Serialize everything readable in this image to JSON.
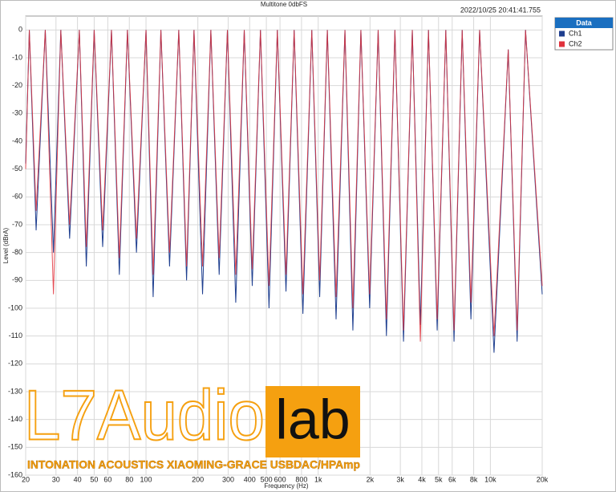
{
  "chart_data": {
    "type": "line",
    "title": "Multitone 0dbFS",
    "timestamp": "2022/10/25 20:41:41.755",
    "logo": "AP",
    "x_label": "Frequency (Hz)",
    "y_label": "Level (dBrA)",
    "legend_title": "Data",
    "log_x": true,
    "grid": true,
    "x": [
      20,
      21,
      23,
      26,
      29,
      32,
      36,
      41,
      45,
      50,
      56,
      63,
      70,
      78,
      88,
      100,
      110,
      122,
      137,
      155,
      172,
      190,
      213,
      238,
      266,
      297,
      332,
      372,
      414,
      462,
      518,
      579,
      650,
      725,
      815,
      918,
      1020,
      1130,
      1270,
      1430,
      1590,
      1770,
      1990,
      2230,
      2490,
      2790,
      3130,
      3520,
      3920,
      4370,
      4910,
      5510,
      6150,
      6860,
      7710,
      8660,
      10500,
      12700,
      14300,
      16000,
      20000
    ],
    "series": [
      {
        "name": "Ch1",
        "color": "#1f3f8f",
        "values": [
          -48,
          0,
          -72,
          0,
          -80,
          0,
          -75,
          0,
          -85,
          0,
          -78,
          0,
          -88,
          0,
          -80,
          0,
          -96,
          0,
          -85,
          0,
          -90,
          0,
          -95,
          0,
          -88,
          0,
          -98,
          0,
          -92,
          0,
          -100,
          0,
          -94,
          0,
          -102,
          0,
          -96,
          0,
          -104,
          0,
          -108,
          0,
          -100,
          0,
          -110,
          0,
          -112,
          0,
          -106,
          0,
          -108,
          0,
          -112,
          0,
          -104,
          0,
          -116,
          -7,
          -112,
          0,
          -95
        ]
      },
      {
        "name": "Ch2",
        "color": "#e0323c",
        "values": [
          -50,
          0,
          -65,
          0,
          -95,
          0,
          -70,
          0,
          -78,
          0,
          -72,
          0,
          -82,
          0,
          -75,
          0,
          -88,
          0,
          -80,
          0,
          -85,
          0,
          -85,
          0,
          -82,
          0,
          -88,
          0,
          -86,
          0,
          -92,
          0,
          -88,
          0,
          -95,
          0,
          -90,
          0,
          -96,
          0,
          -100,
          0,
          -95,
          0,
          -104,
          0,
          -108,
          0,
          -112,
          0,
          -104,
          0,
          -108,
          0,
          -98,
          0,
          -110,
          -7,
          -108,
          0,
          -92
        ]
      }
    ],
    "xlim": [
      20,
      20000
    ],
    "xticks": [
      20,
      30,
      40,
      50,
      60,
      80,
      100,
      200,
      300,
      400,
      500,
      600,
      800,
      {
        "value": 1000,
        "label": "1k"
      },
      {
        "value": 2000,
        "label": "2k"
      },
      {
        "value": 3000,
        "label": "3k"
      },
      {
        "value": 4000,
        "label": "4k"
      },
      {
        "value": 5000,
        "label": "5k"
      },
      {
        "value": 6000,
        "label": "6k"
      },
      {
        "value": 8000,
        "label": "8k"
      },
      {
        "value": 10000,
        "label": "10k"
      },
      {
        "value": 20000,
        "label": "20k"
      }
    ],
    "ylim": [
      -160,
      5
    ],
    "yticks": [
      -160,
      -150,
      -140,
      -130,
      -120,
      -110,
      -100,
      -90,
      -80,
      -70,
      -60,
      -50,
      -40,
      -30,
      -20,
      -10,
      0
    ],
    "watermark": {
      "brand": "L7Audio",
      "brand_box": "lab",
      "caption": "INTONATION ACOUSTICS XIAOMING-GRACE USBDAC/HPAmp"
    }
  }
}
